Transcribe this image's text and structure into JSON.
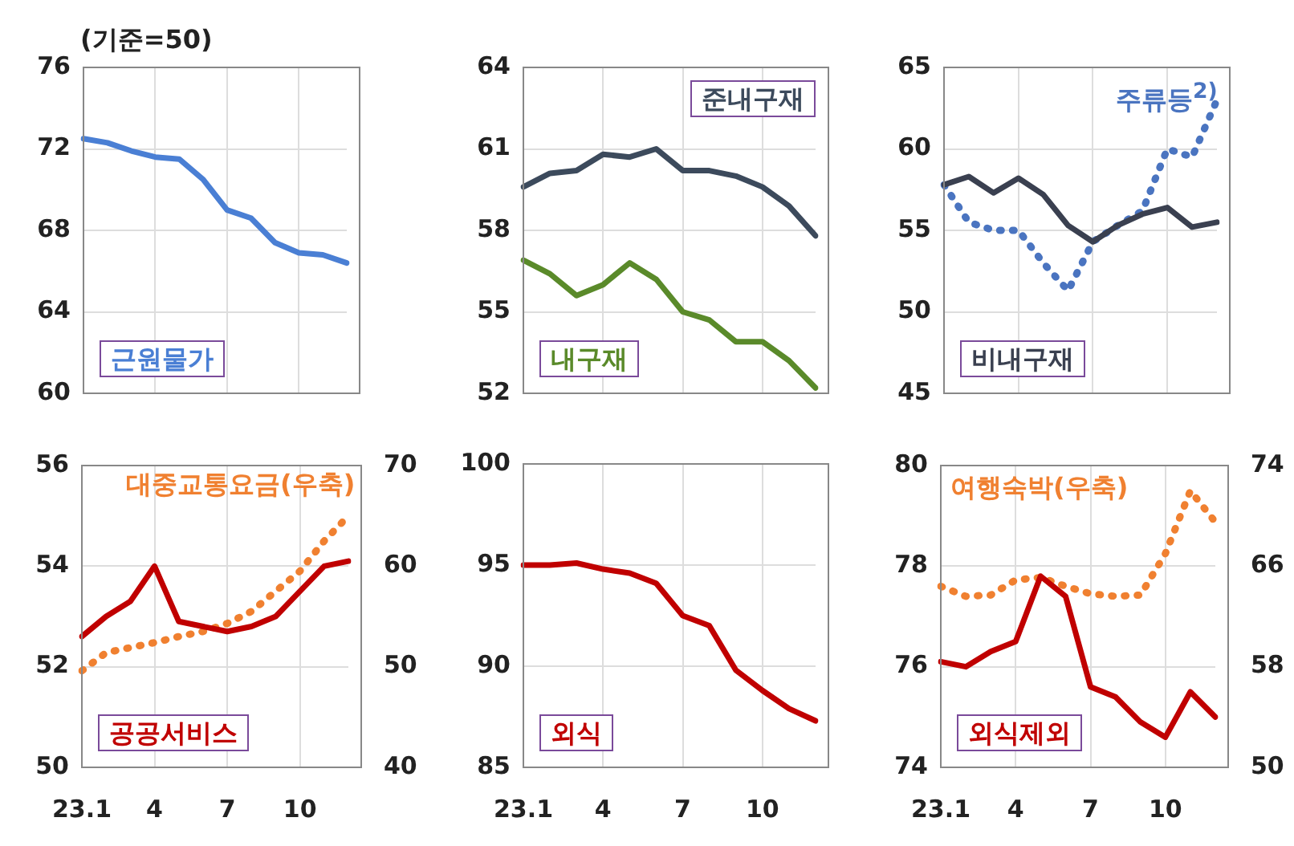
{
  "chart_data": [
    {
      "type": "line",
      "categories": [
        "23.1",
        null,
        null,
        "4",
        null,
        null,
        "7",
        null,
        null,
        "10",
        null,
        null
      ],
      "ylim": [
        60,
        76
      ],
      "yticks": [
        60,
        64,
        68,
        72,
        76
      ],
      "grid": true,
      "legend": false,
      "marker": "none",
      "tick_labels": "y",
      "annotations": [
        "(기준=50)"
      ],
      "series": [
        {
          "name": "근원물가",
          "color": "#4a7fd4",
          "values": [
            72.5,
            72.3,
            71.9,
            71.6,
            71.5,
            70.5,
            69.0,
            68.6,
            67.4,
            66.9,
            66.8,
            66.4
          ]
        }
      ]
    },
    {
      "type": "line",
      "categories": [
        "23.1",
        null,
        null,
        "4",
        null,
        null,
        "7",
        null,
        null,
        "10",
        null,
        null
      ],
      "ylim": [
        52,
        64
      ],
      "yticks": [
        52,
        55,
        58,
        61,
        64
      ],
      "grid": true,
      "legend": false,
      "marker": "none",
      "tick_labels": "y",
      "series": [
        {
          "name": "준내구재",
          "color": "#3c4a5c",
          "values": [
            59.6,
            60.1,
            60.2,
            60.8,
            60.7,
            61.0,
            60.2,
            60.2,
            60.0,
            59.6,
            58.9,
            57.8
          ]
        },
        {
          "name": "내구재",
          "color": "#5a8a2a",
          "values": [
            56.9,
            56.4,
            55.6,
            56.0,
            56.8,
            56.2,
            55.0,
            54.7,
            53.9,
            53.9,
            53.2,
            52.2
          ]
        }
      ]
    },
    {
      "type": "line",
      "categories": [
        "23.1",
        null,
        null,
        "4",
        null,
        null,
        "7",
        null,
        null,
        "10",
        null,
        null
      ],
      "ylim": [
        45,
        65
      ],
      "yticks": [
        45,
        50,
        55,
        60,
        65
      ],
      "grid": true,
      "legend": false,
      "marker": "none",
      "tick_labels": "y",
      "series": [
        {
          "name": "비내구재",
          "color": "#3a4050",
          "values": [
            57.8,
            58.3,
            57.3,
            58.2,
            57.2,
            55.3,
            54.3,
            55.3,
            56.0,
            56.4,
            55.2,
            55.5
          ]
        },
        {
          "name": "주류등$^{2)}$",
          "color": "#4a74c0",
          "line_style": "dotted",
          "values": [
            57.8,
            55.5,
            55.0,
            55.0,
            53.0,
            51.3,
            54.3,
            55.3,
            56.2,
            60.0,
            59.5,
            63.0
          ]
        }
      ]
    },
    {
      "type": "line",
      "categories": [
        "23.1",
        null,
        null,
        "4",
        null,
        null,
        "7",
        null,
        null,
        "10",
        null,
        null
      ],
      "ylim": [
        50,
        56
      ],
      "yticks": [
        50,
        52,
        54,
        56
      ],
      "y2lim": [
        40,
        70
      ],
      "y2ticks": [
        40,
        50,
        60,
        70
      ],
      "grid": true,
      "legend": false,
      "marker": "none",
      "series": [
        {
          "name": "공공서비스",
          "color": "#c00000",
          "values": [
            52.6,
            53.0,
            53.3,
            54.0,
            52.9,
            52.8,
            52.7,
            52.8,
            53.0,
            53.5,
            54.0,
            54.1
          ]
        },
        {
          "name": "대중교통요금(우축)",
          "color": "#f08030",
          "line_style": "dotted",
          "axis": "y2",
          "values": [
            49.6,
            51.4,
            51.9,
            52.4,
            53.0,
            53.5,
            54.3,
            55.5,
            57.5,
            59.5,
            62.5,
            65.0
          ]
        }
      ]
    },
    {
      "type": "line",
      "categories": [
        "23.1",
        null,
        null,
        "4",
        null,
        null,
        "7",
        null,
        null,
        "10",
        null,
        null
      ],
      "ylim": [
        85,
        100
      ],
      "yticks": [
        85,
        90,
        95,
        100
      ],
      "grid": true,
      "legend": false,
      "marker": "none",
      "series": [
        {
          "name": "외식",
          "color": "#c00000",
          "values": [
            95.0,
            95.0,
            95.1,
            94.8,
            94.6,
            94.1,
            92.5,
            92.0,
            89.8,
            88.8,
            87.9,
            87.3
          ]
        }
      ]
    },
    {
      "type": "line",
      "categories": [
        "23.1",
        null,
        null,
        "4",
        null,
        null,
        "7",
        null,
        null,
        "10",
        null,
        null
      ],
      "ylim": [
        74,
        80
      ],
      "yticks": [
        74,
        76,
        78,
        80
      ],
      "y2lim": [
        50,
        74
      ],
      "y2ticks": [
        50,
        58,
        66,
        74
      ],
      "grid": true,
      "legend": false,
      "marker": "none",
      "series": [
        {
          "name": "외식제외",
          "color": "#c00000",
          "values": [
            76.1,
            76.0,
            76.3,
            76.5,
            77.8,
            77.4,
            75.6,
            75.4,
            74.9,
            74.6,
            75.5,
            75.0
          ]
        },
        {
          "name": "여행숙박(우축)",
          "color": "#f08030",
          "line_style": "dotted",
          "axis": "y2",
          "values": [
            64.4,
            63.6,
            63.7,
            64.9,
            65.1,
            64.4,
            63.8,
            63.6,
            63.7,
            67.0,
            72.0,
            69.5
          ]
        }
      ]
    }
  ]
}
